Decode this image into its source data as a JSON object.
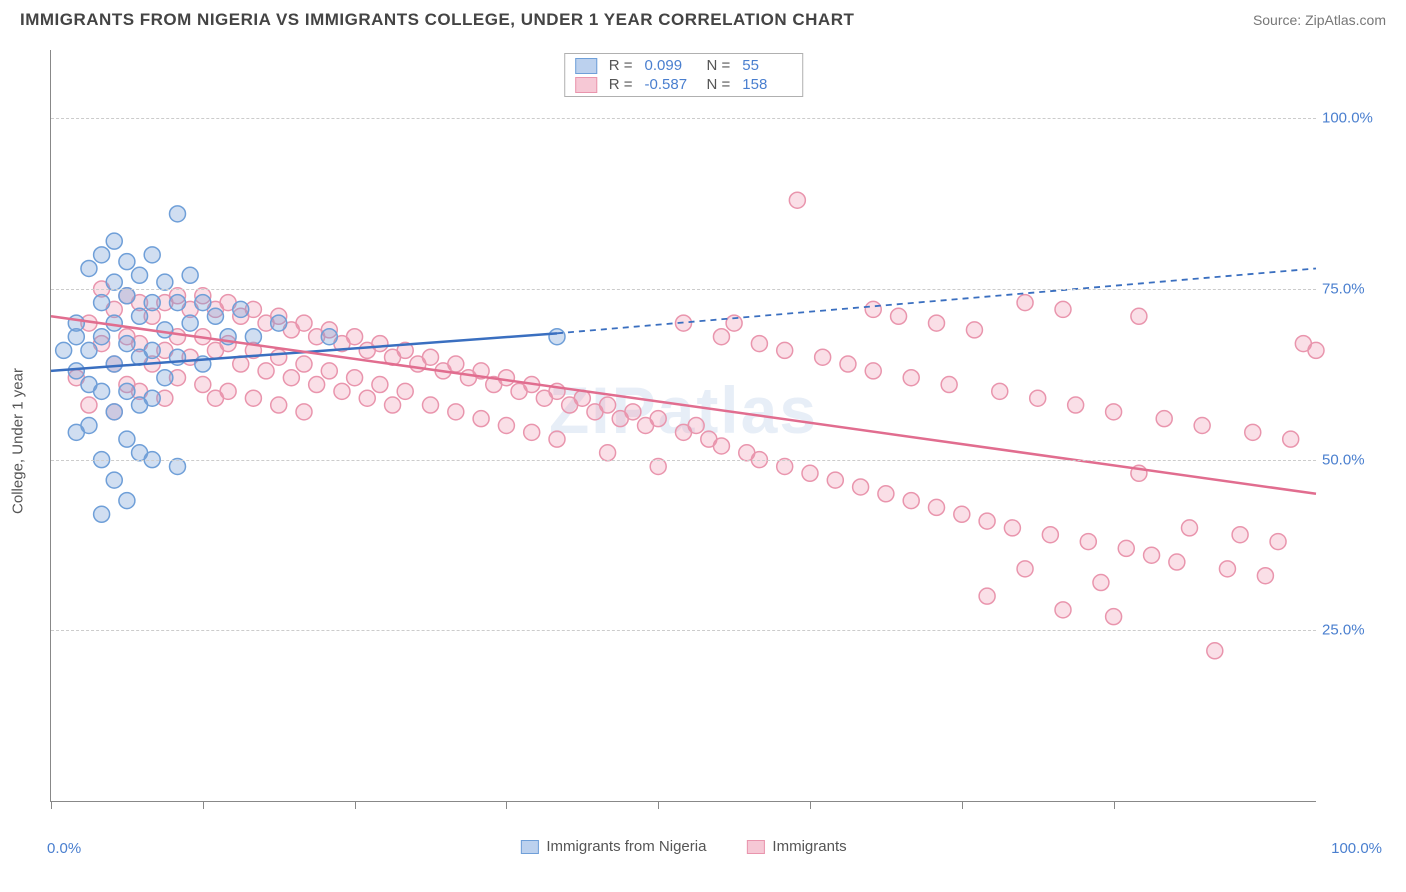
{
  "header": {
    "title": "IMMIGRANTS FROM NIGERIA VS IMMIGRANTS COLLEGE, UNDER 1 YEAR CORRELATION CHART",
    "source": "Source: ZipAtlas.com"
  },
  "chart": {
    "type": "scatter",
    "y_axis_label": "College, Under 1 year",
    "x_range": [
      0,
      100
    ],
    "y_range": [
      0,
      110
    ],
    "y_ticks": [
      {
        "value": 25,
        "label": "25.0%"
      },
      {
        "value": 50,
        "label": "50.0%"
      },
      {
        "value": 75,
        "label": "75.0%"
      },
      {
        "value": 100,
        "label": "100.0%"
      }
    ],
    "x_ticks_minor": [
      0,
      12,
      24,
      36,
      48,
      60,
      72,
      84
    ],
    "x_tick_labels": {
      "min": "0.0%",
      "max": "100.0%"
    },
    "grid_color": "#cccccc",
    "axis_color": "#888888",
    "background_color": "#ffffff",
    "marker_radius": 8,
    "marker_stroke_width": 1.5,
    "trend_line_width": 2.5,
    "watermark": "ZIPatlas",
    "series": [
      {
        "name": "Immigrants from Nigeria",
        "fill_color": "rgba(120,160,215,0.35)",
        "stroke_color": "#6f9fd8",
        "line_color": "#3a6fc0",
        "swatch_fill": "#bcd1ee",
        "swatch_border": "#6f9fd8",
        "R": "0.099",
        "N": "55",
        "trend": {
          "x1": 0,
          "y1": 63,
          "x2": 40,
          "y2": 68.5,
          "x2_dash": 100,
          "y2_dash": 78
        },
        "points": [
          [
            1,
            66
          ],
          [
            2,
            68
          ],
          [
            2,
            63
          ],
          [
            2,
            54
          ],
          [
            2,
            70
          ],
          [
            3,
            78
          ],
          [
            3,
            66
          ],
          [
            3,
            61
          ],
          [
            3,
            55
          ],
          [
            4,
            80
          ],
          [
            4,
            73
          ],
          [
            4,
            68
          ],
          [
            4,
            60
          ],
          [
            4,
            50
          ],
          [
            4,
            42
          ],
          [
            5,
            82
          ],
          [
            5,
            76
          ],
          [
            5,
            70
          ],
          [
            5,
            64
          ],
          [
            5,
            57
          ],
          [
            5,
            47
          ],
          [
            6,
            79
          ],
          [
            6,
            74
          ],
          [
            6,
            67
          ],
          [
            6,
            60
          ],
          [
            6,
            53
          ],
          [
            6,
            44
          ],
          [
            7,
            77
          ],
          [
            7,
            71
          ],
          [
            7,
            65
          ],
          [
            7,
            58
          ],
          [
            7,
            51
          ],
          [
            8,
            80
          ],
          [
            8,
            73
          ],
          [
            8,
            66
          ],
          [
            8,
            59
          ],
          [
            8,
            50
          ],
          [
            9,
            76
          ],
          [
            9,
            69
          ],
          [
            9,
            62
          ],
          [
            10,
            86
          ],
          [
            10,
            73
          ],
          [
            10,
            65
          ],
          [
            10,
            49
          ],
          [
            11,
            77
          ],
          [
            11,
            70
          ],
          [
            12,
            73
          ],
          [
            12,
            64
          ],
          [
            13,
            71
          ],
          [
            14,
            68
          ],
          [
            15,
            72
          ],
          [
            16,
            68
          ],
          [
            18,
            70
          ],
          [
            22,
            68
          ],
          [
            40,
            68
          ]
        ]
      },
      {
        "name": "Immigrants",
        "fill_color": "rgba(240,150,175,0.30)",
        "stroke_color": "#e995ad",
        "line_color": "#e16d8f",
        "swatch_fill": "#f6c8d5",
        "swatch_border": "#e995ad",
        "R": "-0.587",
        "N": "158",
        "trend": {
          "x1": 0,
          "y1": 71,
          "x2": 100,
          "y2": 45
        },
        "points": [
          [
            2,
            62
          ],
          [
            3,
            70
          ],
          [
            3,
            58
          ],
          [
            4,
            75
          ],
          [
            4,
            67
          ],
          [
            5,
            72
          ],
          [
            5,
            64
          ],
          [
            5,
            57
          ],
          [
            6,
            74
          ],
          [
            6,
            68
          ],
          [
            6,
            61
          ],
          [
            7,
            73
          ],
          [
            7,
            67
          ],
          [
            7,
            60
          ],
          [
            8,
            71
          ],
          [
            8,
            64
          ],
          [
            9,
            73
          ],
          [
            9,
            66
          ],
          [
            9,
            59
          ],
          [
            10,
            74
          ],
          [
            10,
            68
          ],
          [
            10,
            62
          ],
          [
            11,
            72
          ],
          [
            11,
            65
          ],
          [
            12,
            74
          ],
          [
            12,
            68
          ],
          [
            12,
            61
          ],
          [
            13,
            72
          ],
          [
            13,
            66
          ],
          [
            13,
            59
          ],
          [
            14,
            73
          ],
          [
            14,
            67
          ],
          [
            14,
            60
          ],
          [
            15,
            71
          ],
          [
            15,
            64
          ],
          [
            16,
            72
          ],
          [
            16,
            66
          ],
          [
            16,
            59
          ],
          [
            17,
            70
          ],
          [
            17,
            63
          ],
          [
            18,
            71
          ],
          [
            18,
            65
          ],
          [
            18,
            58
          ],
          [
            19,
            69
          ],
          [
            19,
            62
          ],
          [
            20,
            70
          ],
          [
            20,
            64
          ],
          [
            20,
            57
          ],
          [
            21,
            68
          ],
          [
            21,
            61
          ],
          [
            22,
            69
          ],
          [
            22,
            63
          ],
          [
            23,
            67
          ],
          [
            23,
            60
          ],
          [
            24,
            68
          ],
          [
            24,
            62
          ],
          [
            25,
            66
          ],
          [
            25,
            59
          ],
          [
            26,
            67
          ],
          [
            26,
            61
          ],
          [
            27,
            65
          ],
          [
            27,
            58
          ],
          [
            28,
            66
          ],
          [
            28,
            60
          ],
          [
            29,
            64
          ],
          [
            30,
            65
          ],
          [
            30,
            58
          ],
          [
            31,
            63
          ],
          [
            32,
            64
          ],
          [
            32,
            57
          ],
          [
            33,
            62
          ],
          [
            34,
            63
          ],
          [
            34,
            56
          ],
          [
            35,
            61
          ],
          [
            36,
            62
          ],
          [
            36,
            55
          ],
          [
            37,
            60
          ],
          [
            38,
            61
          ],
          [
            38,
            54
          ],
          [
            39,
            59
          ],
          [
            40,
            60
          ],
          [
            40,
            53
          ],
          [
            41,
            58
          ],
          [
            42,
            59
          ],
          [
            43,
            57
          ],
          [
            44,
            58
          ],
          [
            44,
            51
          ],
          [
            45,
            56
          ],
          [
            46,
            57
          ],
          [
            47,
            55
          ],
          [
            48,
            56
          ],
          [
            48,
            49
          ],
          [
            50,
            70
          ],
          [
            50,
            54
          ],
          [
            51,
            55
          ],
          [
            52,
            53
          ],
          [
            53,
            68
          ],
          [
            53,
            52
          ],
          [
            54,
            70
          ],
          [
            55,
            51
          ],
          [
            56,
            67
          ],
          [
            56,
            50
          ],
          [
            58,
            66
          ],
          [
            58,
            49
          ],
          [
            59,
            88
          ],
          [
            60,
            48
          ],
          [
            61,
            65
          ],
          [
            62,
            47
          ],
          [
            63,
            64
          ],
          [
            64,
            46
          ],
          [
            65,
            72
          ],
          [
            65,
            63
          ],
          [
            66,
            45
          ],
          [
            67,
            71
          ],
          [
            68,
            62
          ],
          [
            68,
            44
          ],
          [
            70,
            70
          ],
          [
            70,
            43
          ],
          [
            71,
            61
          ],
          [
            72,
            42
          ],
          [
            73,
            69
          ],
          [
            74,
            41
          ],
          [
            74,
            30
          ],
          [
            75,
            60
          ],
          [
            76,
            40
          ],
          [
            77,
            73
          ],
          [
            77,
            34
          ],
          [
            78,
            59
          ],
          [
            79,
            39
          ],
          [
            80,
            72
          ],
          [
            80,
            28
          ],
          [
            81,
            58
          ],
          [
            82,
            38
          ],
          [
            83,
            32
          ],
          [
            84,
            57
          ],
          [
            84,
            27
          ],
          [
            85,
            37
          ],
          [
            86,
            71
          ],
          [
            86,
            48
          ],
          [
            87,
            36
          ],
          [
            88,
            56
          ],
          [
            89,
            35
          ],
          [
            90,
            40
          ],
          [
            91,
            55
          ],
          [
            92,
            22
          ],
          [
            93,
            34
          ],
          [
            94,
            39
          ],
          [
            95,
            54
          ],
          [
            96,
            33
          ],
          [
            97,
            38
          ],
          [
            98,
            53
          ],
          [
            99,
            67
          ],
          [
            100,
            66
          ]
        ]
      }
    ],
    "legend_labels": {
      "series1": "Immigrants from Nigeria",
      "series2": "Immigrants"
    }
  }
}
